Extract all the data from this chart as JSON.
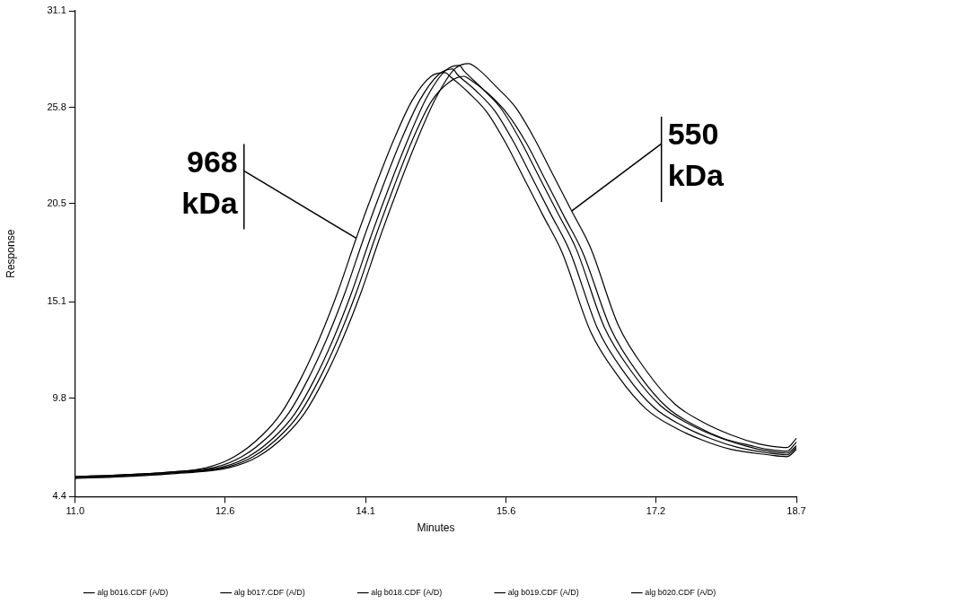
{
  "chart_data": {
    "type": "line",
    "xlabel": "Minutes",
    "ylabel": "Response",
    "xlim": [
      11.0,
      18.7
    ],
    "xticks": [
      {
        "value": 11,
        "label": "11.0"
      },
      12.6,
      14.1,
      15.6,
      17.2,
      18.7
    ],
    "ylim": [
      4.4,
      31.1
    ],
    "yticks": [
      4.4,
      9.8,
      15.1,
      20.5,
      25.8,
      31.1
    ],
    "grid": false,
    "legend": "bottom",
    "marker": "none",
    "line_style": "solid",
    "annotations": [
      {
        "text": "968 kDa",
        "x": 14.0,
        "y": 18.6
      },
      {
        "text": "550 kDa",
        "x": 16.3,
        "y": 20.1
      }
    ],
    "series": [
      {
        "name": "alg b016.CDF (A/D)",
        "color": "#000000",
        "x": [
          11.0,
          11.5,
          12.0,
          12.4,
          12.7,
          13.0,
          13.2,
          13.4,
          13.6,
          13.8,
          14.0,
          14.2,
          14.4,
          14.6,
          14.8,
          14.95,
          15.0,
          15.2,
          15.4,
          15.6,
          15.8,
          16.0,
          16.2,
          16.5,
          16.8,
          17.1,
          17.4,
          17.7,
          18.0,
          18.4,
          18.6,
          18.7
        ],
        "values": [
          5.5,
          5.6,
          5.75,
          6.0,
          6.6,
          7.8,
          9.0,
          10.8,
          13.0,
          15.6,
          18.6,
          21.4,
          24.0,
          26.2,
          27.5,
          27.7,
          27.5,
          26.6,
          25.5,
          23.8,
          21.8,
          19.8,
          17.8,
          13.5,
          11.0,
          9.2,
          8.2,
          7.5,
          7.0,
          6.7,
          6.6,
          7.0
        ]
      },
      {
        "name": "alg b017.CDF (A/D)",
        "color": "#000000",
        "x": [
          11.0,
          11.5,
          12.0,
          12.48,
          12.78,
          13.08,
          13.28,
          13.48,
          13.68,
          13.88,
          14.08,
          14.28,
          14.48,
          14.68,
          14.88,
          15.03,
          15.08,
          15.28,
          15.48,
          15.68,
          15.88,
          16.08,
          16.28,
          16.58,
          16.88,
          17.18,
          17.48,
          17.78,
          18.08,
          18.4,
          18.6,
          18.7
        ],
        "values": [
          5.5,
          5.6,
          5.75,
          6.0,
          6.6,
          7.8,
          9.0,
          10.8,
          13.0,
          15.6,
          18.6,
          21.4,
          24.0,
          26.2,
          27.6,
          27.9,
          27.6,
          26.7,
          25.6,
          23.9,
          21.9,
          19.9,
          17.9,
          13.6,
          11.1,
          9.3,
          8.3,
          7.6,
          7.1,
          6.8,
          6.7,
          7.1
        ]
      },
      {
        "name": "alg b018.CDF (A/D)",
        "color": "#000000",
        "x": [
          11.0,
          11.5,
          12.0,
          12.55,
          12.85,
          13.15,
          13.35,
          13.55,
          13.75,
          13.95,
          14.15,
          14.35,
          14.55,
          14.75,
          14.95,
          15.1,
          15.15,
          15.35,
          15.55,
          15.75,
          15.95,
          16.15,
          16.35,
          16.65,
          16.95,
          17.25,
          17.55,
          17.85,
          18.15,
          18.4,
          18.6,
          18.7
        ],
        "values": [
          5.45,
          5.55,
          5.7,
          6.0,
          6.6,
          7.8,
          9.0,
          10.8,
          13.0,
          15.6,
          18.6,
          21.4,
          24.0,
          26.3,
          27.8,
          28.1,
          27.8,
          26.8,
          25.7,
          24.0,
          22.0,
          20.0,
          18.0,
          13.7,
          11.2,
          9.4,
          8.4,
          7.7,
          7.2,
          6.9,
          6.8,
          7.2
        ]
      },
      {
        "name": "alg b019.CDF (A/D)",
        "color": "#000000",
        "x": [
          11.0,
          11.5,
          12.0,
          12.6,
          12.9,
          13.2,
          13.4,
          13.6,
          13.8,
          14.0,
          14.2,
          14.4,
          14.6,
          14.8,
          15.0,
          15.15,
          15.22,
          15.42,
          15.62,
          15.82,
          16.02,
          16.22,
          16.42,
          16.72,
          17.02,
          17.32,
          17.62,
          17.92,
          18.22,
          18.4,
          18.6,
          18.7
        ],
        "values": [
          5.45,
          5.55,
          5.7,
          6.0,
          6.6,
          7.8,
          9.0,
          10.8,
          13.0,
          15.6,
          18.6,
          21.4,
          24.0,
          26.1,
          27.2,
          27.5,
          27.3,
          26.5,
          25.4,
          23.8,
          21.8,
          19.8,
          17.8,
          13.6,
          11.1,
          9.3,
          8.3,
          7.6,
          7.2,
          7.0,
          6.9,
          7.4
        ]
      },
      {
        "name": "alg b020.CDF (A/D)",
        "color": "#000000",
        "x": [
          11.0,
          11.5,
          12.0,
          12.65,
          12.95,
          13.25,
          13.45,
          13.65,
          13.85,
          14.05,
          14.25,
          14.45,
          14.65,
          14.85,
          15.05,
          15.2,
          15.3,
          15.5,
          15.7,
          15.9,
          16.1,
          16.3,
          16.5,
          16.8,
          17.1,
          17.4,
          17.7,
          18.0,
          18.3,
          18.4,
          18.6,
          18.7
        ],
        "values": [
          5.4,
          5.5,
          5.65,
          6.0,
          6.6,
          7.8,
          9.0,
          10.8,
          13.0,
          15.6,
          18.6,
          21.4,
          24.0,
          26.3,
          27.9,
          28.2,
          27.9,
          26.9,
          25.8,
          24.1,
          22.1,
          20.1,
          18.1,
          13.8,
          11.3,
          9.5,
          8.5,
          7.8,
          7.3,
          7.2,
          7.1,
          7.6
        ]
      }
    ]
  }
}
